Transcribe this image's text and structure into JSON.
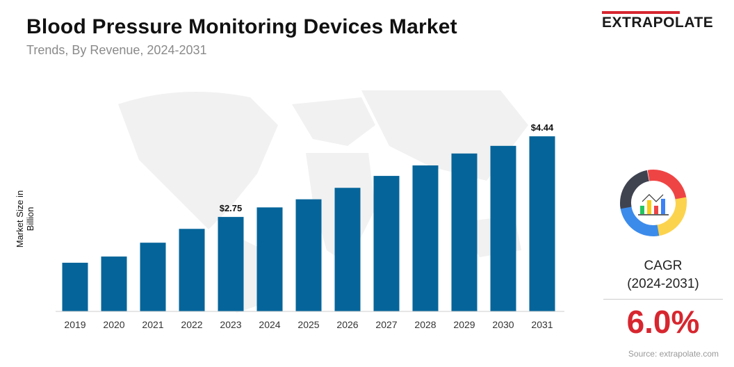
{
  "header": {
    "title": "Blood Pressure Monitoring Devices Market",
    "subtitle": "Trends, By Revenue, 2024-2031"
  },
  "logo": {
    "text": "EXTRAPOLATE",
    "accent": "#d7262f"
  },
  "cagr": {
    "label": "CAGR",
    "period": "(2024-2031)",
    "value": "6.0%",
    "icon": "donut-chart-analytics-icon"
  },
  "source": "Source: extrapolate.com",
  "chart_data": {
    "type": "bar",
    "title": "Blood Pressure Monitoring Devices Market",
    "ylabel": "Market Size in Billion",
    "xlabel": "",
    "categories": [
      "2019",
      "2020",
      "2021",
      "2022",
      "2023",
      "2024",
      "2025",
      "2026",
      "2027",
      "2028",
      "2029",
      "2030",
      "2031"
    ],
    "values": [
      1.79,
      1.92,
      2.21,
      2.5,
      2.75,
      2.95,
      3.12,
      3.36,
      3.61,
      3.83,
      4.08,
      4.24,
      4.44
    ],
    "data_labels": {
      "4": "$2.75",
      "12": "$4.44"
    },
    "bar_color": "#05659a",
    "grid": false
  }
}
